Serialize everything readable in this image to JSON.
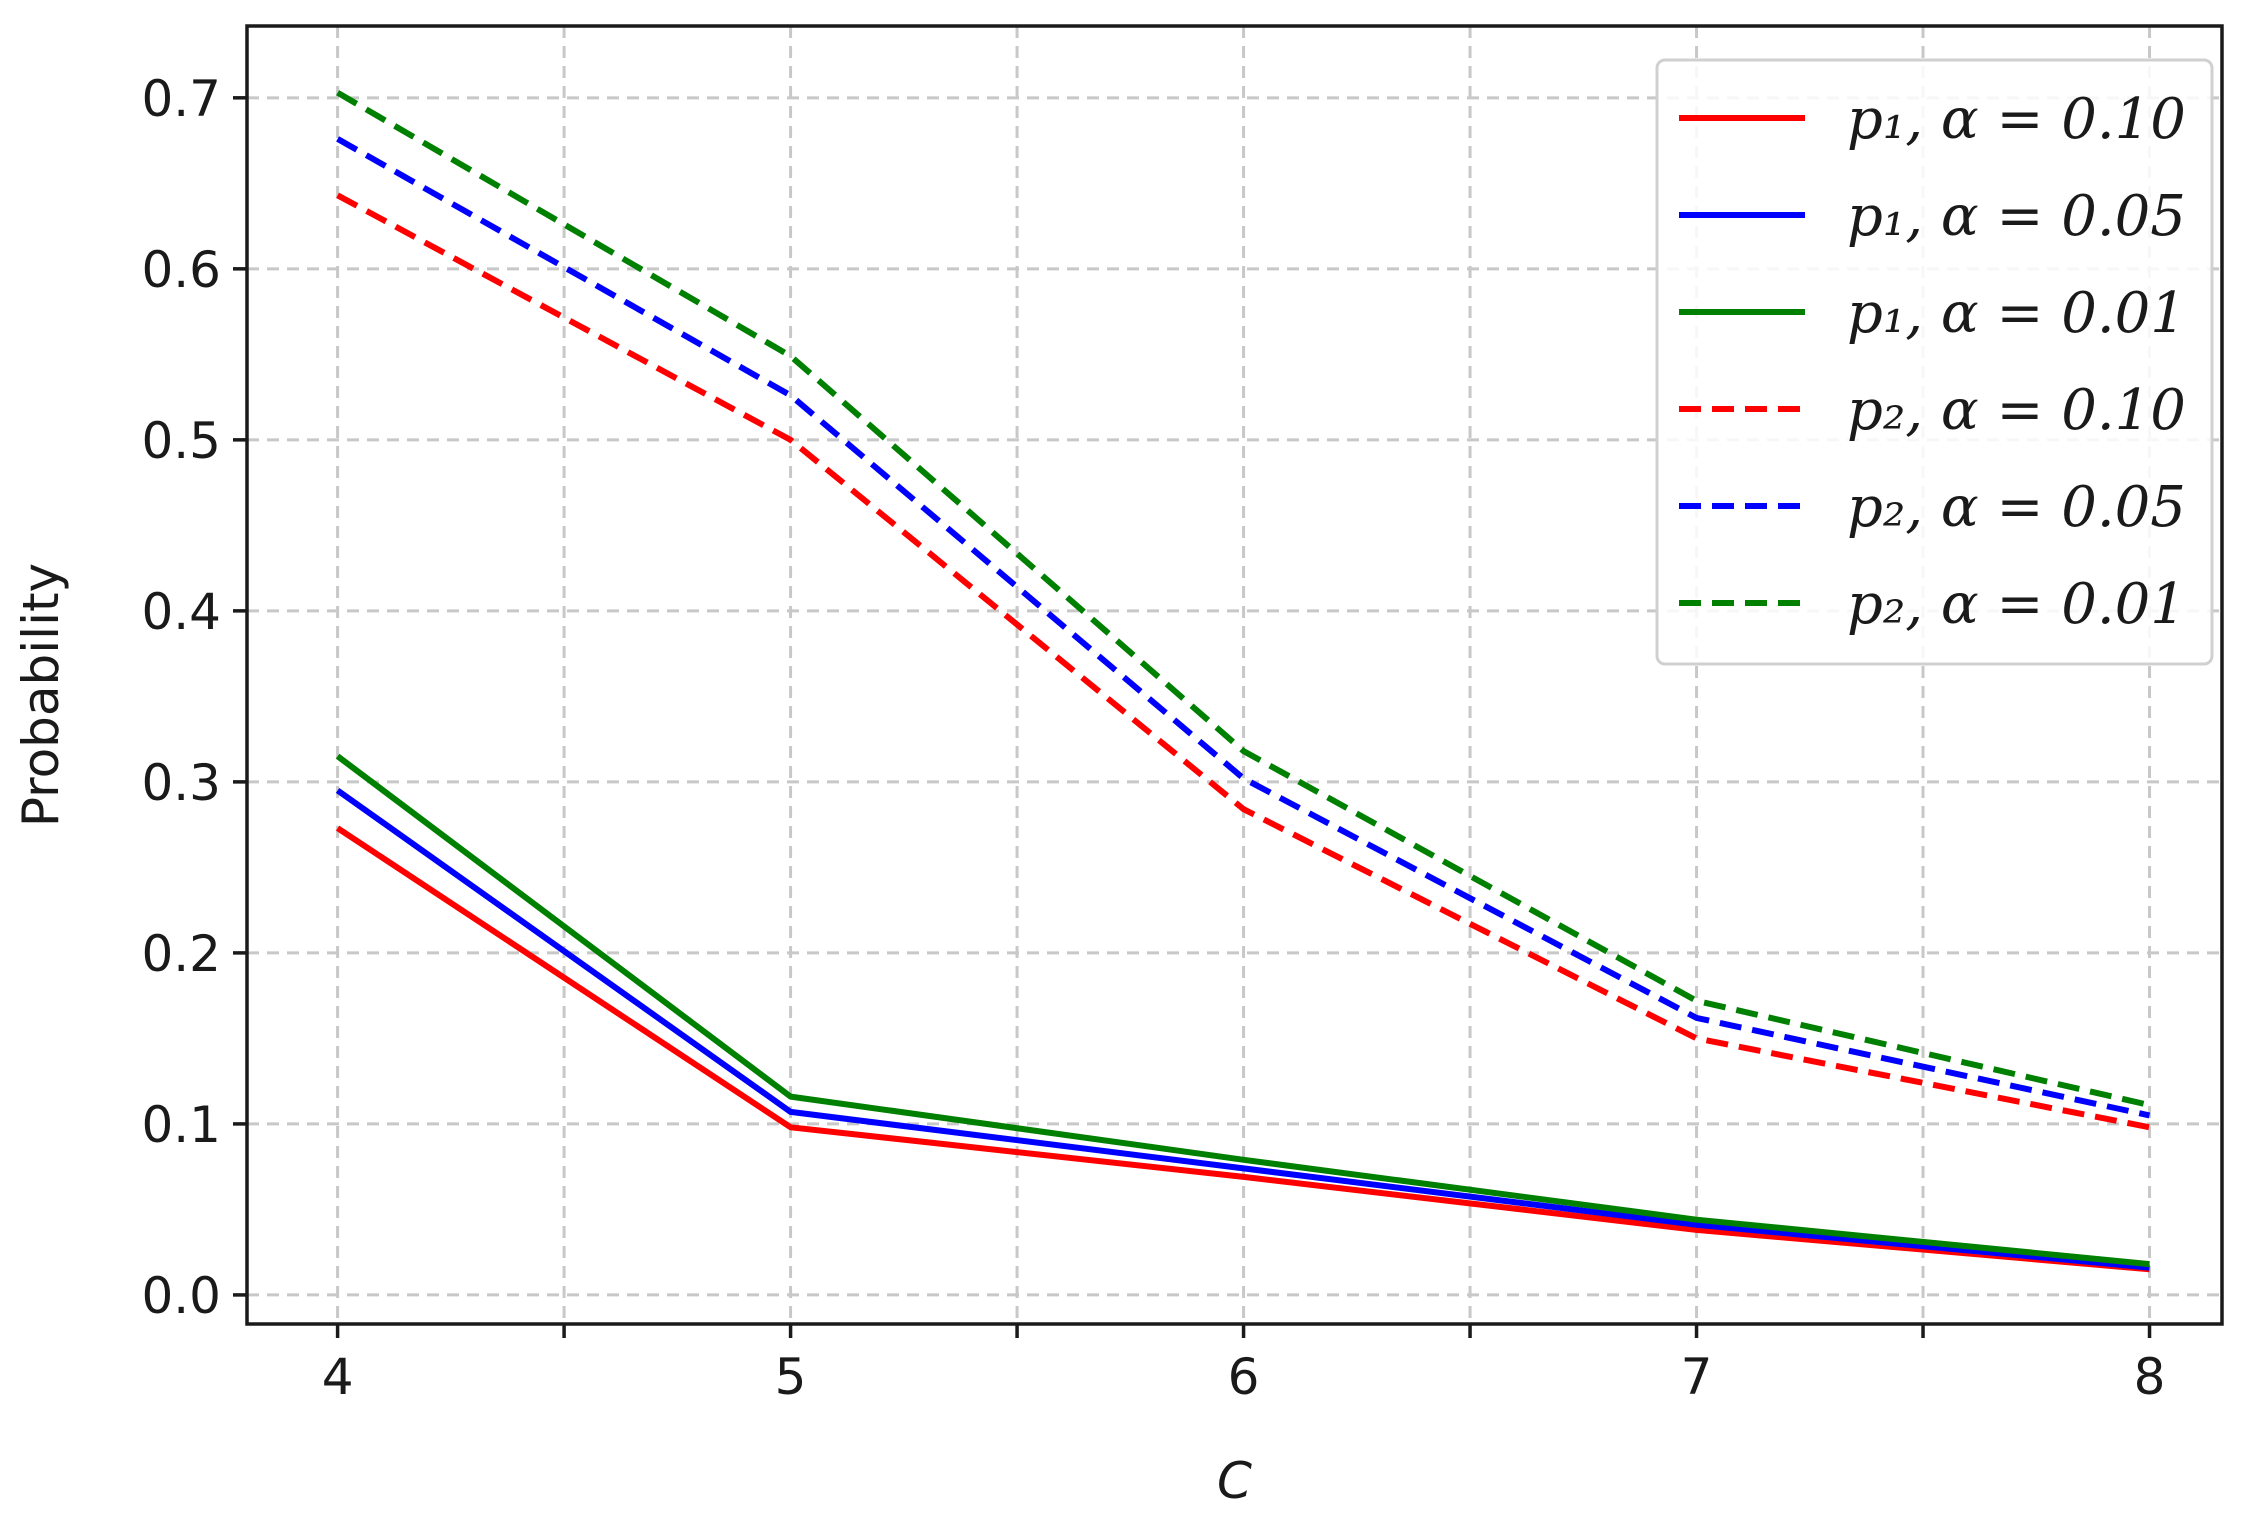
{
  "chart_data": {
    "type": "line",
    "xlabel": "C",
    "ylabel": "Probability",
    "x": [
      4,
      5,
      6,
      7,
      8
    ],
    "xlim": [
      3.8,
      8.16
    ],
    "ylim": [
      -0.017,
      0.742
    ],
    "xticks": [
      "4",
      "5",
      "6",
      "7",
      "8"
    ],
    "yticks": [
      "0.0",
      "0.1",
      "0.2",
      "0.3",
      "0.4",
      "0.5",
      "0.6",
      "0.7"
    ],
    "grid": true,
    "legend_position": "top-right",
    "series": [
      {
        "name": "p₁, α = 0.10",
        "color": "#ff0000",
        "dash": false,
        "values": [
          0.273,
          0.098,
          0.069,
          0.038,
          0.015
        ]
      },
      {
        "name": "p₁, α = 0.05",
        "color": "#0000ff",
        "dash": false,
        "values": [
          0.295,
          0.107,
          0.074,
          0.041,
          0.016
        ]
      },
      {
        "name": "p₁, α = 0.01",
        "color": "#008000",
        "dash": false,
        "values": [
          0.315,
          0.116,
          0.079,
          0.044,
          0.018
        ]
      },
      {
        "name": "p₂, α = 0.10",
        "color": "#ff0000",
        "dash": true,
        "values": [
          0.643,
          0.5,
          0.284,
          0.15,
          0.098
        ]
      },
      {
        "name": "p₂, α = 0.05",
        "color": "#0000ff",
        "dash": true,
        "values": [
          0.676,
          0.526,
          0.302,
          0.162,
          0.105
        ]
      },
      {
        "name": "p₂, α = 0.01",
        "color": "#008000",
        "dash": true,
        "values": [
          0.703,
          0.549,
          0.318,
          0.172,
          0.111
        ]
      }
    ]
  }
}
